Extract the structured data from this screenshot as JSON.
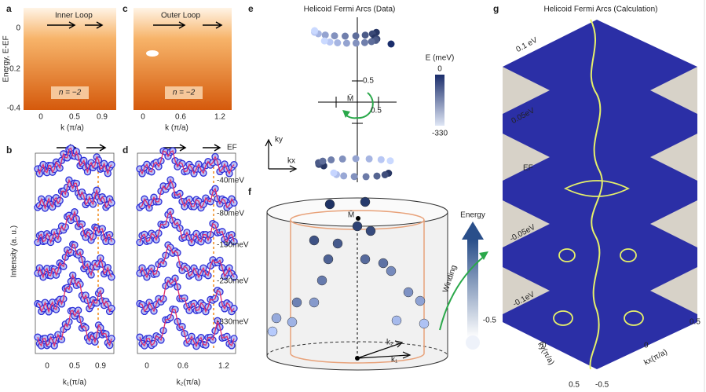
{
  "panels": {
    "a": {
      "label": "a",
      "title": "Inner Loop",
      "y_axis_label": "Energy, E-EF",
      "yticks": [
        "0",
        "-0.2",
        "-0.4"
      ],
      "xticks": [
        "0",
        "0.5",
        "0.9"
      ],
      "x_axis_label": "k (π/a)",
      "annotation": "n = −2"
    },
    "c": {
      "label": "c",
      "title": "Outer Loop",
      "xticks": [
        "0",
        "0.6",
        "1.2"
      ],
      "x_axis_label": "k (π/a)",
      "annotation": "n = −2"
    },
    "b": {
      "label": "b",
      "y_axis_label": "Intensity (a. u.)",
      "xticks": [
        "0",
        "0.5",
        "0.9"
      ],
      "x_axis_label": "k₁(π/a)"
    },
    "d": {
      "label": "d",
      "xticks": [
        "0",
        "0.6",
        "1.2"
      ],
      "x_axis_label": "k₂(π/a)",
      "energy_labels": [
        "EF",
        "-40meV",
        "-80meV",
        "-130meV",
        "-230meV",
        "-330meV"
      ]
    },
    "e": {
      "label": "e",
      "title": "Helicoid  Fermi Arcs (Data)",
      "tick_upper": "0.5",
      "center": "M̄",
      "tick_right": "0.5",
      "ky": "ky",
      "kx": "kx",
      "colorbar_title": "E (meV)",
      "colorbar_max": "0",
      "colorbar_min": "-330"
    },
    "f": {
      "label": "f",
      "center": "M̄",
      "energy": "Energy",
      "winding": "Winding",
      "k1": "k₁",
      "k2": "k₂"
    },
    "g": {
      "label": "g",
      "title": "Helicoid  Fermi Arcs  (Calculation)",
      "energy_labels": [
        "0.1 eV",
        "0.05eV",
        "EF",
        "-0.05eV",
        "-0.1eV"
      ],
      "ky_ticks": [
        "-0.5",
        "0",
        "0.5"
      ],
      "kx_ticks": [
        "-0.5",
        "0",
        "0.5"
      ],
      "ky_label": "ky(π/a)",
      "kx_label": "kx(π/a)"
    }
  }
}
